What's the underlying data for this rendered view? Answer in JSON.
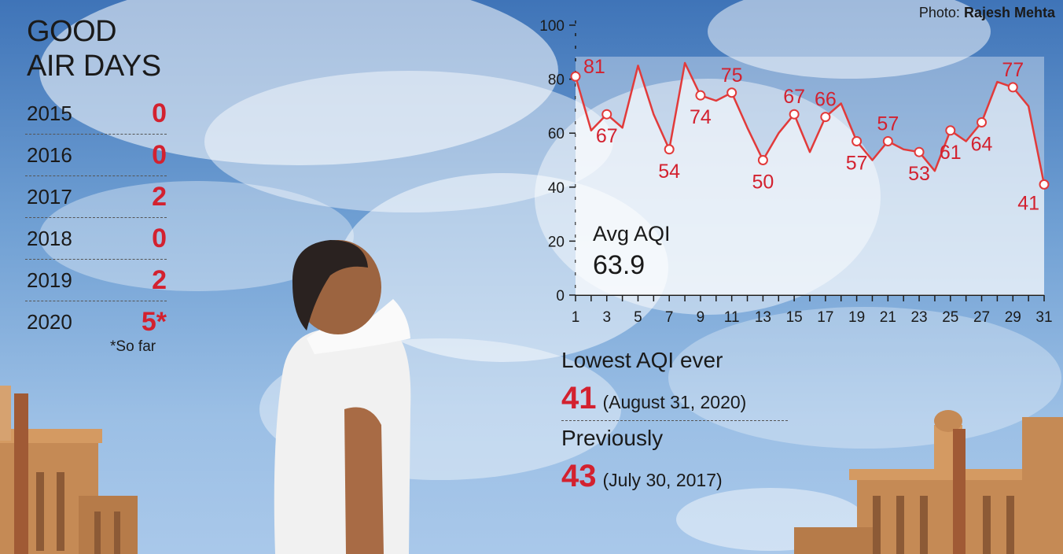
{
  "title": {
    "line1": "GOOD",
    "line2": "AIR DAYS"
  },
  "good_days": [
    {
      "year": "2015",
      "value": "0"
    },
    {
      "year": "2016",
      "value": "0"
    },
    {
      "year": "2017",
      "value": "2"
    },
    {
      "year": "2018",
      "value": "0"
    },
    {
      "year": "2019",
      "value": "2"
    },
    {
      "year": "2020",
      "value": "5*"
    }
  ],
  "note": "*So far",
  "credit": {
    "prefix": "Photo:",
    "name": "Rajesh Mehta"
  },
  "avg": {
    "label": "Avg AQI",
    "value": "63.9"
  },
  "lowest": {
    "heading": "Lowest AQI ever",
    "value": "41",
    "date": "(August 31, 2020)",
    "prev_heading": "Previously",
    "prev_value": "43",
    "prev_date": "(July 30, 2017)"
  },
  "colors": {
    "accent": "#d3212f",
    "line": "#e23a3a",
    "text": "#1a1a1a"
  },
  "chart_data": {
    "type": "line",
    "x": [
      1,
      2,
      3,
      4,
      5,
      6,
      7,
      8,
      9,
      10,
      11,
      12,
      13,
      14,
      15,
      16,
      17,
      18,
      19,
      20,
      21,
      22,
      23,
      24,
      25,
      26,
      27,
      28,
      29,
      30,
      31
    ],
    "values": [
      81,
      61,
      67,
      62,
      85,
      67,
      54,
      86,
      74,
      72,
      75,
      62,
      50,
      60,
      67,
      53,
      66,
      71,
      57,
      50,
      57,
      54,
      53,
      46,
      61,
      57,
      64,
      79,
      77,
      70,
      41
    ],
    "labeled_points": [
      {
        "x": 1,
        "y": 81
      },
      {
        "x": 3,
        "y": 67
      },
      {
        "x": 7,
        "y": 54
      },
      {
        "x": 9,
        "y": 74
      },
      {
        "x": 11,
        "y": 75
      },
      {
        "x": 13,
        "y": 50
      },
      {
        "x": 15,
        "y": 67
      },
      {
        "x": 17,
        "y": 66
      },
      {
        "x": 19,
        "y": 57
      },
      {
        "x": 21,
        "y": 57
      },
      {
        "x": 23,
        "y": 53
      },
      {
        "x": 25,
        "y": 61
      },
      {
        "x": 27,
        "y": 64
      },
      {
        "x": 29,
        "y": 77
      },
      {
        "x": 31,
        "y": 41
      }
    ],
    "y_ticks": [
      0,
      20,
      40,
      60,
      80,
      100
    ],
    "x_tick_labels": [
      1,
      3,
      5,
      7,
      9,
      11,
      13,
      15,
      17,
      19,
      21,
      23,
      25,
      27,
      29,
      31
    ],
    "ylim": [
      0,
      100
    ],
    "xlim": [
      1,
      31
    ],
    "grid": false
  }
}
